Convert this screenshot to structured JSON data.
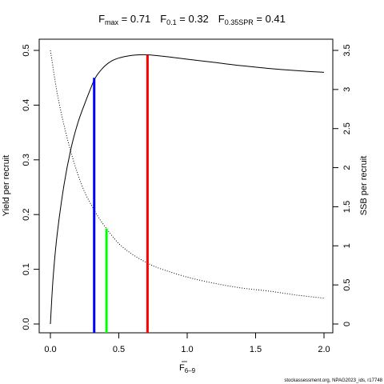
{
  "chart_data": {
    "type": "line",
    "title_parts": {
      "fmax_symbol": "F",
      "fmax_sub": "max",
      "fmax_value": " = 0.71",
      "f01_symbol": "F",
      "f01_sub": "0.1",
      "f01_value": " = 0.32",
      "fspr_symbol": "F",
      "fspr_sub": "0.35SPR",
      "fspr_value": " = 0.41"
    },
    "xlabel_main": "F",
    "xlabel_sub": "6–9",
    "ylabel_left": "Yield per recruit",
    "ylabel_right": "SSB per recruit",
    "xlim": [
      0,
      2
    ],
    "ylim_left": [
      0,
      0.5
    ],
    "ylim_right": [
      0,
      3.5
    ],
    "x_ticks": [
      "0.0",
      "0.5",
      "1.0",
      "1.5",
      "2.0"
    ],
    "y_left_ticks": [
      "0.0",
      "0.1",
      "0.2",
      "0.3",
      "0.4",
      "0.5"
    ],
    "y_right_ticks": [
      "0",
      "0.5",
      "1",
      "1.5",
      "2",
      "2.5",
      "3",
      "3.5"
    ],
    "series": [
      {
        "axis": "left",
        "style": "solid",
        "x": [
          0.0,
          0.02,
          0.05,
          0.1,
          0.15,
          0.2,
          0.25,
          0.3,
          0.32,
          0.35,
          0.4,
          0.45,
          0.5,
          0.55,
          0.6,
          0.65,
          0.71,
          0.8,
          0.9,
          1.0,
          1.2,
          1.4,
          1.6,
          1.8,
          2.0
        ],
        "y": [
          0.0,
          0.085,
          0.165,
          0.255,
          0.32,
          0.367,
          0.402,
          0.434,
          0.446,
          0.458,
          0.472,
          0.481,
          0.486,
          0.489,
          0.491,
          0.492,
          0.492,
          0.49,
          0.487,
          0.484,
          0.478,
          0.472,
          0.467,
          0.463,
          0.46
        ]
      },
      {
        "axis": "right",
        "style": "dotted",
        "x": [
          0.0,
          0.05,
          0.1,
          0.15,
          0.2,
          0.25,
          0.3,
          0.35,
          0.41,
          0.5,
          0.6,
          0.71,
          0.8,
          1.0,
          1.2,
          1.4,
          1.6,
          1.8,
          2.0
        ],
        "y": [
          3.5,
          2.95,
          2.54,
          2.2,
          1.92,
          1.69,
          1.52,
          1.37,
          1.22,
          1.03,
          0.89,
          0.78,
          0.71,
          0.6,
          0.52,
          0.46,
          0.42,
          0.37,
          0.33
        ]
      }
    ],
    "reference_lines": [
      {
        "label": "Fmax",
        "x": 0.71,
        "axis": "left",
        "y": 0.492,
        "color": "#ff0000"
      },
      {
        "label": "F0.1",
        "x": 0.32,
        "axis": "left",
        "y": 0.45,
        "color": "#0000ff"
      },
      {
        "label": "F0.35SPR",
        "x": 0.41,
        "axis": "right",
        "y": 1.22,
        "color": "#00ff00"
      }
    ],
    "footnote": "stockassessment.org, NPAG2023_ids, r17748"
  }
}
